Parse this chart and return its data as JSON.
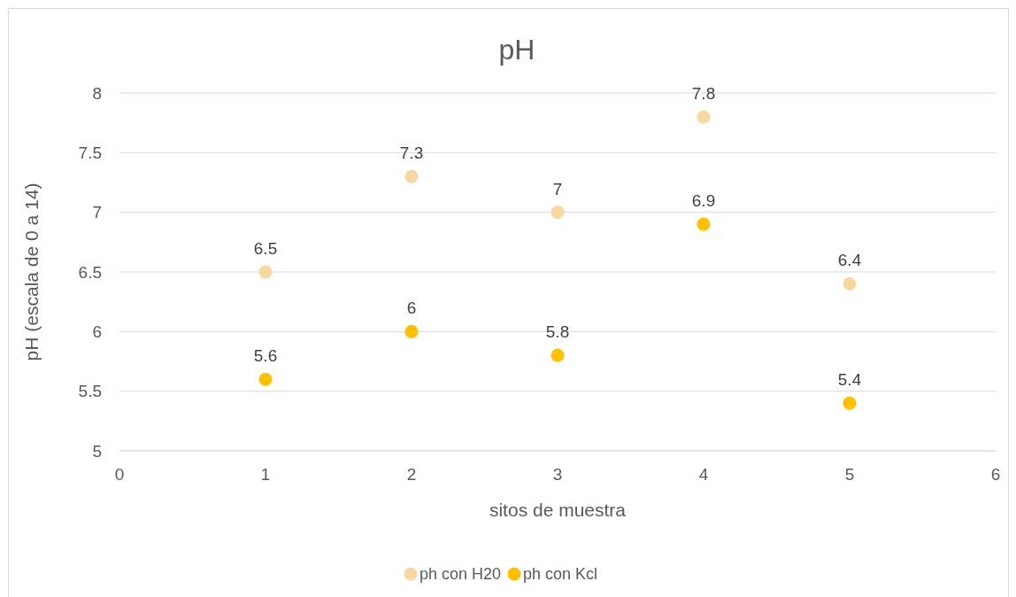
{
  "chart_data": {
    "type": "scatter",
    "title": "pH",
    "xlabel": "sitos de muestra",
    "ylabel": "pH (escala de 0 a 14)",
    "series": [
      {
        "name": "ph con H20",
        "color": "#f9d7a1",
        "x": [
          1,
          2,
          3,
          4,
          5
        ],
        "values": [
          6.5,
          7.3,
          7,
          7.8,
          6.4
        ]
      },
      {
        "name": "ph con Kcl",
        "color": "#ffc000",
        "x": [
          1,
          2,
          3,
          4,
          5
        ],
        "values": [
          5.6,
          6,
          5.8,
          6.9,
          5.4
        ]
      }
    ],
    "xlim": [
      0,
      6
    ],
    "xticks": [
      0,
      1,
      2,
      3,
      4,
      5,
      6
    ],
    "ylim": [
      5,
      8
    ],
    "yticks": [
      5,
      5.5,
      6,
      6.5,
      7,
      7.5,
      8
    ],
    "grid": "y",
    "legend": "bottom",
    "marker": "circle",
    "data_labels": true
  }
}
